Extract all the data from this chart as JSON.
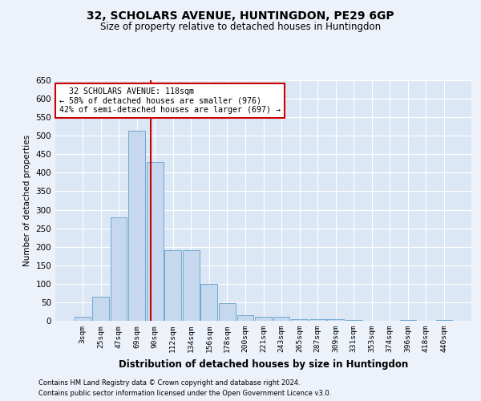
{
  "title": "32, SCHOLARS AVENUE, HUNTINGDON, PE29 6GP",
  "subtitle": "Size of property relative to detached houses in Huntingdon",
  "xlabel": "Distribution of detached houses by size in Huntingdon",
  "ylabel": "Number of detached properties",
  "footer_line1": "Contains HM Land Registry data © Crown copyright and database right 2024.",
  "footer_line2": "Contains public sector information licensed under the Open Government Licence v3.0.",
  "bin_labels": [
    "3sqm",
    "25sqm",
    "47sqm",
    "69sqm",
    "90sqm",
    "112sqm",
    "134sqm",
    "156sqm",
    "178sqm",
    "200sqm",
    "221sqm",
    "243sqm",
    "265sqm",
    "287sqm",
    "309sqm",
    "331sqm",
    "353sqm",
    "374sqm",
    "396sqm",
    "418sqm",
    "440sqm"
  ],
  "bar_values": [
    10,
    65,
    280,
    513,
    430,
    190,
    190,
    100,
    47,
    15,
    10,
    10,
    5,
    5,
    4,
    3,
    0,
    0,
    3,
    0,
    2
  ],
  "bar_color": "#c5d8ee",
  "bar_edge_color": "#6fa8d0",
  "marker_color": "#cc0000",
  "annotation_line1": "  32 SCHOLARS AVENUE: 118sqm",
  "annotation_line2": "← 58% of detached houses are smaller (976)",
  "annotation_line3": "42% of semi-detached houses are larger (697) →",
  "annotation_box_color": "#ffffff",
  "annotation_box_edge": "#cc0000",
  "ylim": [
    0,
    650
  ],
  "yticks": [
    0,
    50,
    100,
    150,
    200,
    250,
    300,
    350,
    400,
    450,
    500,
    550,
    600,
    650
  ],
  "bg_color": "#edf2fa",
  "plot_bg_color": "#dce7f5",
  "grid_color": "#ffffff",
  "title_fontsize": 10,
  "subtitle_fontsize": 8.5
}
